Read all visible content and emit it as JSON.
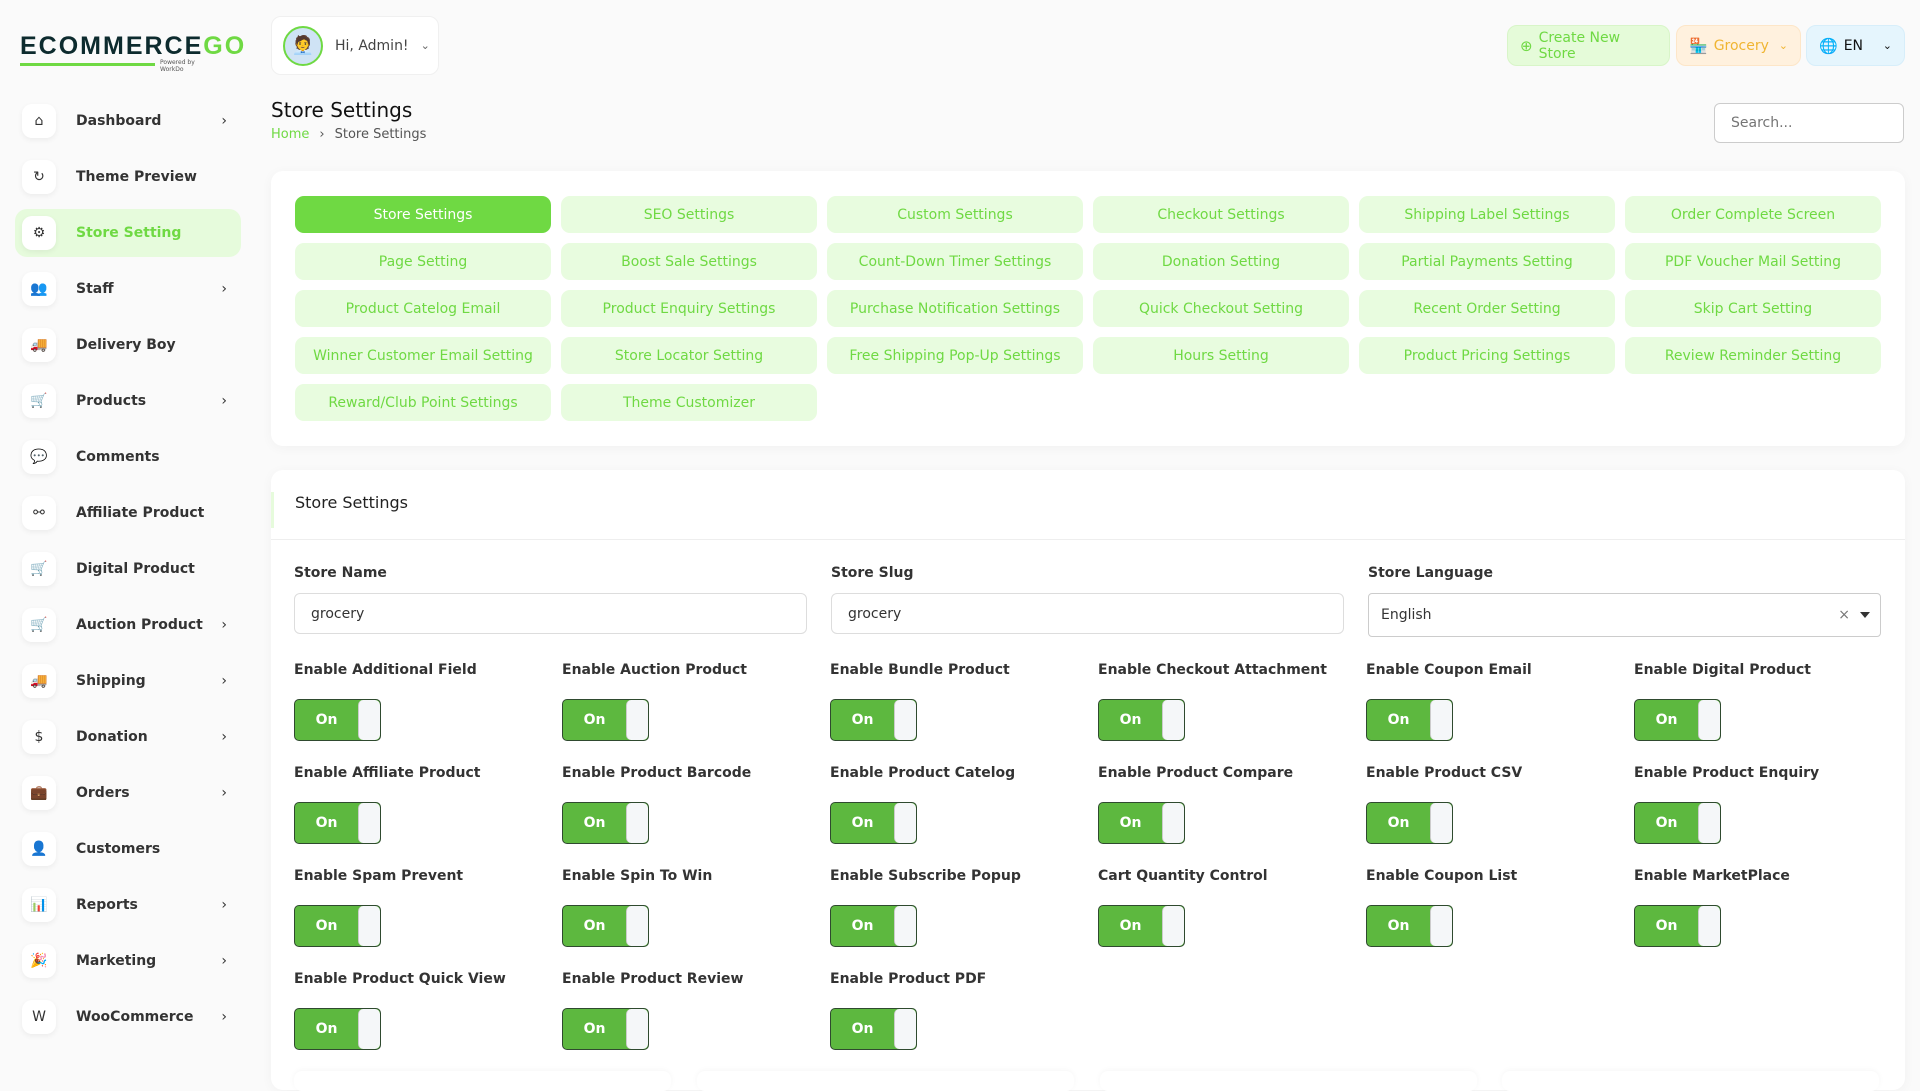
{
  "brand": {
    "logo_text": "ECOMMERCEGO",
    "logo_sub": "Powered by WorkDo",
    "accent": "#6fd943"
  },
  "sidebar": {
    "items": [
      {
        "label": "Dashboard",
        "icon": "home-icon",
        "glyph": "⌂",
        "chevron": true
      },
      {
        "label": "Theme Preview",
        "icon": "refresh-icon",
        "glyph": "↻",
        "chevron": false
      },
      {
        "label": "Store Setting",
        "icon": "settings-icon",
        "glyph": "⚙",
        "chevron": false,
        "active": true
      },
      {
        "label": "Staff",
        "icon": "users-icon",
        "glyph": "👥",
        "chevron": true
      },
      {
        "label": "Delivery Boy",
        "icon": "truck-icon",
        "glyph": "🚚",
        "chevron": false
      },
      {
        "label": "Products",
        "icon": "cart-icon",
        "glyph": "🛒",
        "chevron": true
      },
      {
        "label": "Comments",
        "icon": "comment-icon",
        "glyph": "💬",
        "chevron": false
      },
      {
        "label": "Affiliate Product",
        "icon": "affiliate-icon",
        "glyph": "⚯",
        "chevron": false
      },
      {
        "label": "Digital Product",
        "icon": "cart-plus-icon",
        "glyph": "🛒",
        "chevron": false
      },
      {
        "label": "Auction Product",
        "icon": "auction-cart-icon",
        "glyph": "🛒",
        "chevron": true
      },
      {
        "label": "Shipping",
        "icon": "shipping-truck-icon",
        "glyph": "🚚",
        "chevron": true
      },
      {
        "label": "Donation",
        "icon": "dollar-coin-icon",
        "glyph": "$",
        "chevron": true
      },
      {
        "label": "Orders",
        "icon": "briefcase-icon",
        "glyph": "💼",
        "chevron": true
      },
      {
        "label": "Customers",
        "icon": "user-icon",
        "glyph": "👤",
        "chevron": false
      },
      {
        "label": "Reports",
        "icon": "chart-bar-icon",
        "glyph": "📊",
        "chevron": true
      },
      {
        "label": "Marketing",
        "icon": "confetti-icon",
        "glyph": "🎉",
        "chevron": true
      },
      {
        "label": "WooCommerce",
        "icon": "woocommerce-icon",
        "glyph": "W",
        "chevron": true
      }
    ]
  },
  "header": {
    "greeting": "Hi, Admin!",
    "create_store": "Create New Store",
    "store": "Grocery",
    "language": "EN",
    "search_placeholder": "Search..."
  },
  "page": {
    "title": "Store Settings",
    "breadcrumb": [
      "Home",
      "Store Settings"
    ]
  },
  "tabs": [
    "Store Settings",
    "SEO Settings",
    "Custom Settings",
    "Checkout Settings",
    "Shipping Label Settings",
    "Order Complete Screen",
    "Page Setting",
    "Boost Sale Settings",
    "Count-Down Timer Settings",
    "Donation Setting",
    "Partial Payments Setting",
    "PDF Voucher Mail Setting",
    "Product Catelog Email",
    "Product Enquiry Settings",
    "Purchase Notification Settings",
    "Quick Checkout Setting",
    "Recent Order Setting",
    "Skip Cart Setting",
    "Winner Customer Email Setting",
    "Store Locator Setting",
    "Free Shipping Pop-Up Settings",
    "Hours Setting",
    "Product Pricing Settings",
    "Review Reminder Setting",
    "Reward/Club Point Settings",
    "Theme Customizer"
  ],
  "active_tab": "Store Settings",
  "form": {
    "section_title": "Store Settings",
    "store_name": {
      "label": "Store Name",
      "value": "grocery"
    },
    "store_slug": {
      "label": "Store Slug",
      "value": "grocery"
    },
    "store_language": {
      "label": "Store Language",
      "value": "English"
    },
    "toggles": [
      {
        "label": "Enable Additional Field",
        "state": "On"
      },
      {
        "label": "Enable Auction Product",
        "state": "On"
      },
      {
        "label": "Enable Bundle Product",
        "state": "On"
      },
      {
        "label": "Enable Checkout Attachment",
        "state": "On"
      },
      {
        "label": "Enable Coupon Email",
        "state": "On"
      },
      {
        "label": "Enable Digital Product",
        "state": "On"
      },
      {
        "label": "Enable Affiliate Product",
        "state": "On"
      },
      {
        "label": "Enable Product Barcode",
        "state": "On"
      },
      {
        "label": "Enable Product Catelog",
        "state": "On"
      },
      {
        "label": "Enable Product Compare",
        "state": "On"
      },
      {
        "label": "Enable Product CSV",
        "state": "On"
      },
      {
        "label": "Enable Product Enquiry",
        "state": "On"
      },
      {
        "label": "Enable Spam Prevent",
        "state": "On"
      },
      {
        "label": "Enable Spin To Win",
        "state": "On"
      },
      {
        "label": "Enable Subscribe Popup",
        "state": "On"
      },
      {
        "label": "Cart Quantity Control",
        "state": "On"
      },
      {
        "label": "Enable Coupon List",
        "state": "On"
      },
      {
        "label": "Enable MarketPlace",
        "state": "On"
      },
      {
        "label": "Enable Product Quick View",
        "state": "On"
      },
      {
        "label": "Enable Product Review",
        "state": "On"
      },
      {
        "label": "Enable Product PDF",
        "state": "On"
      }
    ]
  }
}
